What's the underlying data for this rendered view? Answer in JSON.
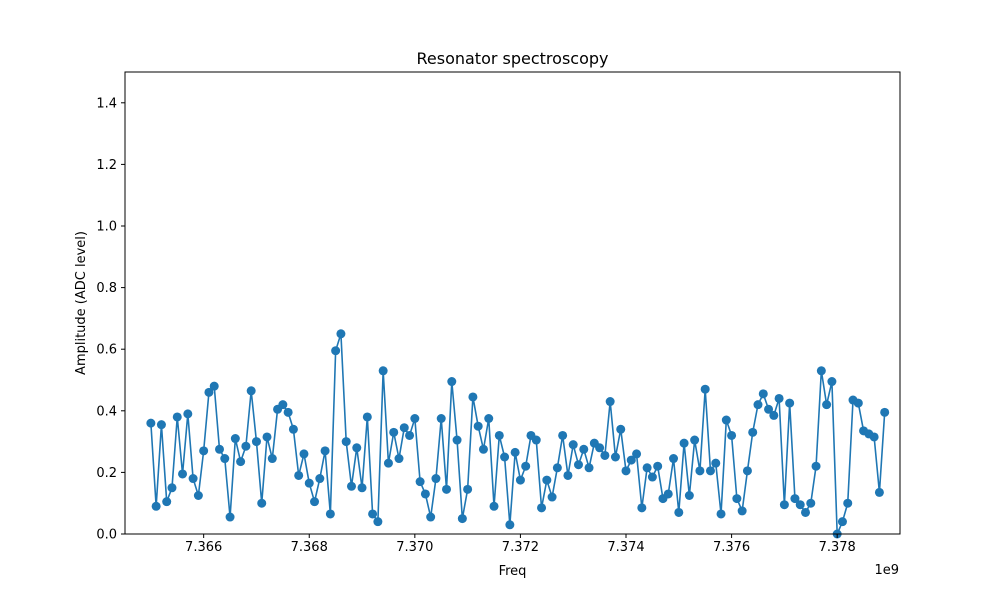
{
  "chart_data": {
    "type": "line",
    "title": "Resonator spectroscopy",
    "xlabel": "Freq",
    "ylabel": "Amplitude (ADC level)",
    "x_offset_label": "1e9",
    "xlim": [
      7.36451,
      7.37919
    ],
    "ylim": [
      0,
      1.5
    ],
    "x_ticks": [
      7.366,
      7.368,
      7.37,
      7.372,
      7.374,
      7.376,
      7.378
    ],
    "x_tick_labels": [
      "7.366",
      "7.368",
      "7.370",
      "7.372",
      "7.374",
      "7.376",
      "7.378"
    ],
    "y_ticks": [
      0.0,
      0.2,
      0.4,
      0.6,
      0.8,
      1.0,
      1.2,
      1.4
    ],
    "y_tick_labels": [
      "0.0",
      "0.2",
      "0.4",
      "0.6",
      "0.8",
      "1.0",
      "1.2",
      "1.4"
    ],
    "grid": false,
    "marker": "circle",
    "color": "#1f77b4",
    "series": [
      {
        "x_start": 7.365,
        "x_step": 0.0001,
        "values": [
          0.36,
          0.09,
          0.355,
          0.105,
          0.15,
          0.38,
          0.195,
          0.39,
          0.18,
          0.125,
          0.27,
          0.46,
          0.48,
          0.275,
          0.245,
          0.055,
          0.31,
          0.235,
          0.285,
          0.465,
          0.3,
          0.1,
          0.315,
          0.245,
          0.405,
          0.42,
          0.395,
          0.34,
          0.19,
          0.26,
          0.165,
          0.105,
          0.18,
          0.27,
          0.065,
          0.595,
          0.65,
          0.3,
          0.155,
          0.28,
          0.15,
          0.38,
          0.065,
          0.04,
          0.53,
          0.23,
          0.33,
          0.245,
          0.345,
          0.32,
          0.375,
          0.17,
          0.13,
          0.055,
          0.18,
          0.375,
          0.145,
          0.495,
          0.305,
          0.05,
          0.145,
          0.445,
          0.35,
          0.275,
          0.375,
          0.09,
          0.32,
          0.25,
          0.03,
          0.265,
          0.175,
          0.22,
          0.32,
          0.305,
          0.085,
          0.175,
          0.12,
          0.215,
          0.32,
          0.19,
          0.29,
          0.225,
          0.275,
          0.215,
          0.295,
          0.28,
          0.255,
          0.43,
          0.25,
          0.34,
          0.205,
          0.24,
          0.26,
          0.085,
          0.215,
          0.185,
          0.22,
          0.115,
          0.13,
          0.245,
          0.07,
          0.295,
          0.125,
          0.305,
          0.205,
          0.47,
          0.205,
          0.23,
          0.065,
          0.37,
          0.32,
          0.115,
          0.075,
          0.205,
          0.33,
          0.42,
          0.455,
          0.405,
          0.385,
          0.44,
          0.095,
          0.425,
          0.115,
          0.095,
          0.07,
          0.1,
          0.22,
          0.53,
          0.42,
          0.495,
          0.0,
          0.04,
          0.1,
          0.435,
          0.425,
          0.335,
          0.325,
          0.315,
          0.135,
          0.395
        ]
      }
    ]
  }
}
